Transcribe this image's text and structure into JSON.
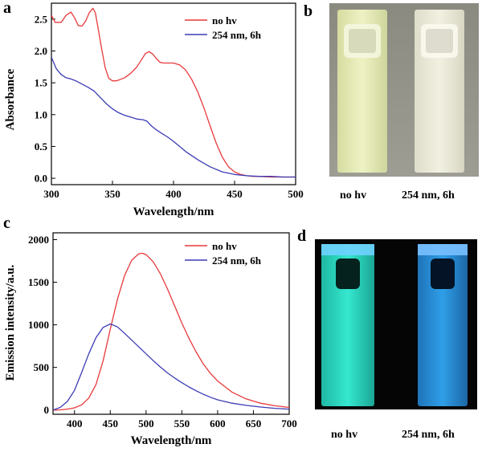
{
  "panels": {
    "a": "a",
    "b": "b",
    "c": "c",
    "d": "d"
  },
  "photo_b": {
    "captions": [
      "no hv",
      "254 nm, 6h"
    ],
    "background_color": "#8f8f86",
    "cuvette_left_color": "#eef2c4",
    "cuvette_right_color": "#f2f1e1"
  },
  "photo_d": {
    "captions": [
      "no hv",
      "254 nm, 6h"
    ],
    "background_color": "#050505",
    "cuvette_left_color": "#35e8cf",
    "cuvette_right_color": "#2f9fe8"
  },
  "chart_data": [
    {
      "type": "line",
      "panel": "a",
      "xlabel": "Wavelength/nm",
      "ylabel": "Absorbance",
      "xlim": [
        300,
        500
      ],
      "ylim": [
        -0.1,
        2.75
      ],
      "xticks": [
        300,
        350,
        400,
        450,
        500
      ],
      "yticks": [
        0.0,
        0.5,
        1.0,
        1.5,
        2.0,
        2.5
      ],
      "legend_position": "top-right",
      "series": [
        {
          "name": "no hv",
          "color": "#e8393b",
          "x": [
            300,
            303,
            308,
            312,
            316,
            319,
            322,
            325,
            328,
            331,
            334,
            336,
            338,
            341,
            344,
            347,
            350,
            353,
            356,
            360,
            365,
            370,
            374,
            377,
            380,
            383,
            386,
            389,
            392,
            396,
            400,
            405,
            410,
            415,
            420,
            425,
            430,
            435,
            440,
            445,
            450,
            455,
            460,
            465,
            470,
            480,
            490,
            500
          ],
          "values": [
            2.56,
            2.45,
            2.45,
            2.56,
            2.61,
            2.52,
            2.4,
            2.39,
            2.47,
            2.6,
            2.67,
            2.6,
            2.38,
            2.05,
            1.74,
            1.57,
            1.53,
            1.53,
            1.55,
            1.58,
            1.65,
            1.75,
            1.87,
            1.96,
            1.99,
            1.95,
            1.88,
            1.82,
            1.81,
            1.81,
            1.81,
            1.78,
            1.7,
            1.55,
            1.35,
            1.1,
            0.82,
            0.55,
            0.33,
            0.18,
            0.1,
            0.06,
            0.04,
            0.03,
            0.03,
            0.02,
            0.02,
            0.02
          ]
        },
        {
          "name": "254 nm, 6h",
          "color": "#3b3bb5",
          "x": [
            300,
            304,
            308,
            312,
            316,
            320,
            325,
            330,
            335,
            340,
            345,
            350,
            355,
            360,
            365,
            370,
            375,
            378,
            382,
            386,
            390,
            395,
            400,
            405,
            410,
            420,
            430,
            440,
            450,
            460,
            470,
            480,
            490,
            500
          ],
          "values": [
            1.9,
            1.72,
            1.63,
            1.58,
            1.56,
            1.53,
            1.48,
            1.43,
            1.37,
            1.27,
            1.17,
            1.09,
            1.03,
            0.99,
            0.96,
            0.93,
            0.92,
            0.9,
            0.82,
            0.76,
            0.71,
            0.65,
            0.58,
            0.5,
            0.42,
            0.29,
            0.18,
            0.1,
            0.06,
            0.04,
            0.03,
            0.03,
            0.02,
            0.02
          ]
        }
      ]
    },
    {
      "type": "line",
      "panel": "c",
      "xlabel": "Wavelength/nm",
      "ylabel": "Emission intensity/a.u.",
      "xlim": [
        370,
        700
      ],
      "ylim": [
        -50,
        2080
      ],
      "xticks": [
        400,
        450,
        500,
        550,
        600,
        650,
        700
      ],
      "yticks": [
        0,
        500,
        1000,
        1500,
        2000
      ],
      "legend_position": "top-right",
      "series": [
        {
          "name": "no hv",
          "color": "#e8393b",
          "x": [
            370,
            380,
            390,
            400,
            410,
            420,
            430,
            440,
            450,
            460,
            470,
            480,
            490,
            495,
            500,
            510,
            520,
            530,
            540,
            550,
            560,
            570,
            580,
            590,
            600,
            620,
            640,
            660,
            680,
            700
          ],
          "values": [
            0,
            2,
            10,
            25,
            60,
            140,
            300,
            580,
            950,
            1300,
            1580,
            1760,
            1835,
            1840,
            1825,
            1740,
            1600,
            1420,
            1220,
            1020,
            840,
            680,
            540,
            430,
            340,
            210,
            130,
            80,
            50,
            30
          ]
        },
        {
          "name": "254 nm, 6h",
          "color": "#3b3bb5",
          "x": [
            370,
            380,
            390,
            400,
            410,
            420,
            430,
            440,
            450,
            460,
            470,
            480,
            490,
            500,
            510,
            520,
            530,
            540,
            550,
            560,
            570,
            580,
            590,
            600,
            620,
            640,
            660,
            680,
            700
          ],
          "values": [
            0,
            30,
            100,
            230,
            440,
            660,
            850,
            970,
            1010,
            975,
            900,
            820,
            740,
            660,
            580,
            505,
            435,
            375,
            320,
            270,
            225,
            185,
            150,
            120,
            80,
            55,
            35,
            20,
            10
          ]
        }
      ]
    }
  ]
}
